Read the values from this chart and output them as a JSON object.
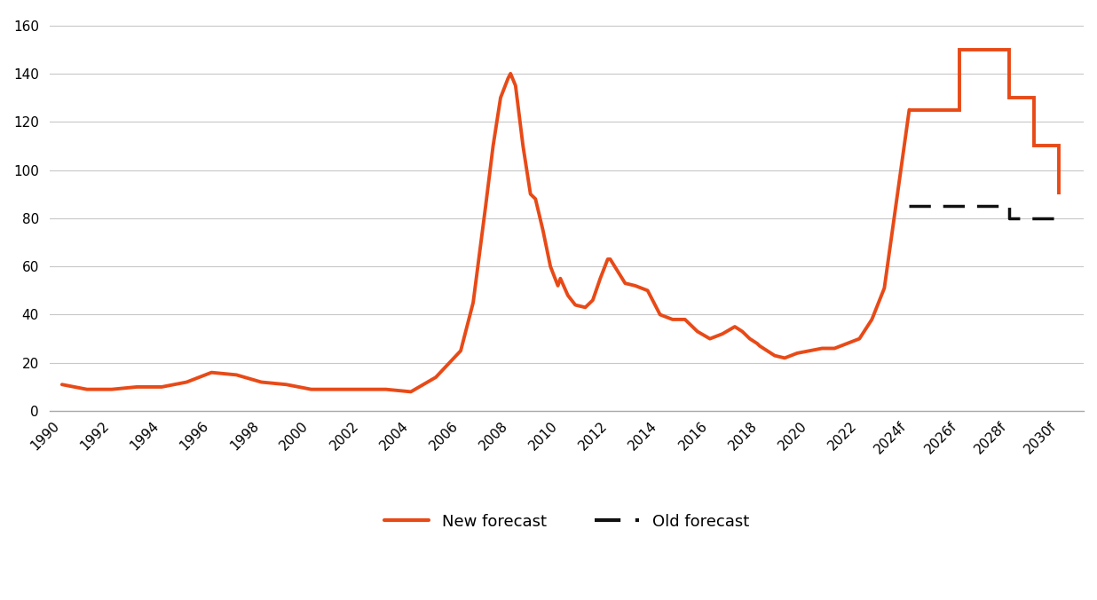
{
  "new_forecast_x": [
    1990,
    1991,
    1992,
    1993,
    1994,
    1995,
    1996,
    1997,
    1998,
    1999,
    2000,
    2001,
    2002,
    2003,
    2004,
    2005,
    2006,
    2006.5,
    2007,
    2007.3,
    2007.6,
    2007.9,
    2008.0,
    2008.2,
    2008.5,
    2008.8,
    2009.0,
    2009.3,
    2009.6,
    2009.9,
    2010,
    2010.3,
    2010.6,
    2011,
    2011.3,
    2011.6,
    2011.9,
    2012,
    2012.3,
    2012.6,
    2013,
    2013.5,
    2014,
    2014.5,
    2015,
    2015.5,
    2016,
    2016.5,
    2017,
    2017.3,
    2017.6,
    2017.9,
    2018,
    2018.3,
    2018.6,
    2019,
    2019.5,
    2020,
    2020.5,
    2021,
    2021.5,
    2022,
    2022.5,
    2023,
    2024,
    2025,
    2026,
    2027,
    2028,
    2029,
    2030
  ],
  "new_forecast_y": [
    11,
    9,
    9,
    10,
    10,
    12,
    16,
    15,
    12,
    11,
    9,
    9,
    9,
    9,
    8,
    14,
    25,
    45,
    85,
    110,
    130,
    138,
    140,
    135,
    110,
    90,
    88,
    75,
    60,
    52,
    55,
    48,
    44,
    43,
    46,
    55,
    63,
    63,
    58,
    53,
    52,
    50,
    40,
    38,
    38,
    33,
    30,
    32,
    35,
    33,
    30,
    28,
    27,
    25,
    23,
    22,
    24,
    25,
    26,
    26,
    28,
    30,
    38,
    51,
    125,
    125,
    150,
    150,
    130,
    110,
    90
  ],
  "old_forecast_x": [
    2024,
    2025,
    2026,
    2027,
    2028,
    2028,
    2029,
    2030
  ],
  "old_forecast_y": [
    85,
    85,
    85,
    85,
    85,
    80,
    80,
    80
  ],
  "new_color": "#E84A17",
  "old_color": "#111111",
  "new_linewidth": 2.8,
  "old_linewidth": 2.5,
  "ylabel_ticks": [
    0,
    20,
    40,
    60,
    80,
    100,
    120,
    140,
    160
  ],
  "xlim_min": 1989.5,
  "xlim_max": 2031,
  "ylim_min": 0,
  "ylim_max": 165,
  "xtick_labels": [
    "1990",
    "1992",
    "1994",
    "1996",
    "1998",
    "2000",
    "2002",
    "2004",
    "2006",
    "2008",
    "2010",
    "2012",
    "2014",
    "2016",
    "2018",
    "2020",
    "2022",
    "2024f",
    "2026f",
    "2028f",
    "2030f"
  ],
  "xtick_positions": [
    1990,
    1992,
    1994,
    1996,
    1998,
    2000,
    2002,
    2004,
    2006,
    2008,
    2010,
    2012,
    2014,
    2016,
    2018,
    2020,
    2022,
    2024,
    2026,
    2028,
    2030
  ],
  "legend_new_label": "New forecast",
  "legend_old_label": "Old forecast",
  "background_color": "#ffffff",
  "grid_color": "#c8c8c8"
}
